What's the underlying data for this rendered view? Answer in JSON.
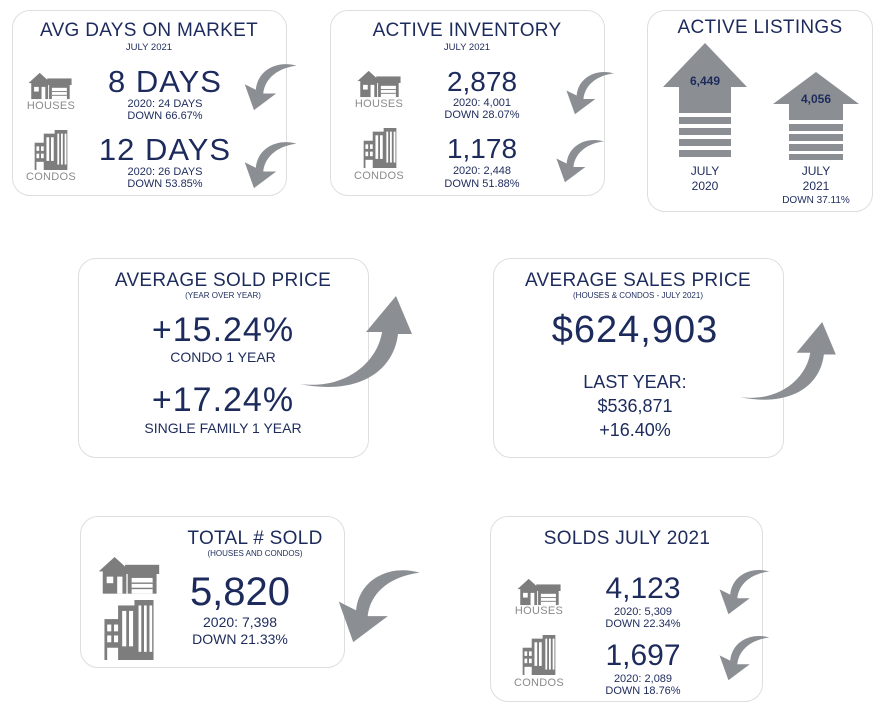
{
  "avg_days": {
    "title": "AVG DAYS ON MARKET",
    "subtitle": "JULY 2021",
    "houses": {
      "label": "HOUSES",
      "value": "8 DAYS",
      "prior": "2020: 24 DAYS",
      "change": "DOWN 66.67%"
    },
    "condos": {
      "label": "CONDOS",
      "value": "12 DAYS",
      "prior": "2020: 26 DAYS",
      "change": "DOWN 53.85%"
    }
  },
  "active_inventory": {
    "title": "ACTIVE INVENTORY",
    "subtitle": "JULY 2021",
    "houses": {
      "label": "HOUSES",
      "value": "2,878",
      "prior": "2020: 4,001",
      "change": "DOWN 28.07%"
    },
    "condos": {
      "label": "CONDOS",
      "value": "1,178",
      "prior": "2020: 2,448",
      "change": "DOWN 51.88%"
    }
  },
  "active_listings": {
    "title": "ACTIVE LISTINGS",
    "bars": [
      {
        "value": "6,449",
        "label_line1": "JULY",
        "label_line2": "2020"
      },
      {
        "value": "4,056",
        "label_line1": "JULY",
        "label_line2": "2021"
      }
    ],
    "change": "DOWN 37.11%"
  },
  "avg_sold_price": {
    "title": "AVERAGE SOLD PRICE",
    "subtitle": "(YEAR OVER YEAR)",
    "condo_value": "+15.24%",
    "condo_label": "CONDO 1 YEAR",
    "sf_value": "+17.24%",
    "sf_label": "SINGLE FAMILY 1 YEAR"
  },
  "avg_sales_price": {
    "title": "AVERAGE SALES PRICE",
    "subtitle": "(HOUSES & CONDOS - JULY 2021)",
    "value": "$624,903",
    "last_year_label": "LAST YEAR:",
    "last_year_value": "$536,871",
    "change": "+16.40%"
  },
  "total_sold": {
    "title": "TOTAL # SOLD",
    "subtitle": "(HOUSES AND CONDOS)",
    "value": "5,820",
    "prior": "2020: 7,398",
    "change": "DOWN 21.33%"
  },
  "solds": {
    "title": "SOLDS JULY 2021",
    "houses": {
      "label": "HOUSES",
      "value": "4,123",
      "prior": "2020: 5,309",
      "change": "DOWN 22.34%"
    },
    "condos": {
      "label": "CONDOS",
      "value": "1,697",
      "prior": "2020: 2,089",
      "change": "DOWN 18.76%"
    }
  },
  "colors": {
    "navy": "#1d2b5c",
    "arrow_gray": "#8b8f94",
    "icon_gray": "#7d7d7d",
    "border": "#dedede"
  }
}
